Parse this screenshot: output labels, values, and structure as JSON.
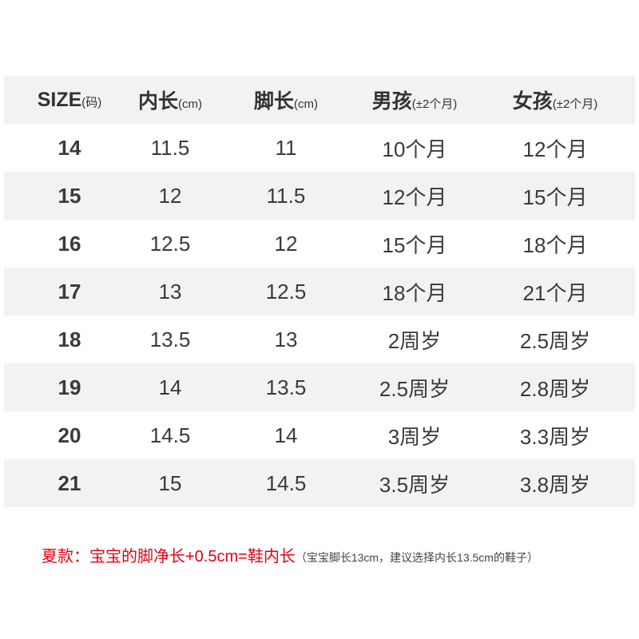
{
  "table": {
    "headers": [
      {
        "main": "SIZE",
        "sub": "(码)"
      },
      {
        "main": "内长",
        "sub": "(cm)"
      },
      {
        "main": "脚长",
        "sub": "(cm)"
      },
      {
        "main": "男孩",
        "sub": "(±2个月)"
      },
      {
        "main": "女孩",
        "sub": "(±2个月)"
      }
    ],
    "rows": [
      [
        "14",
        "11.5",
        "11",
        "10个月",
        "12个月"
      ],
      [
        "15",
        "12",
        "11.5",
        "12个月",
        "15个月"
      ],
      [
        "16",
        "12.5",
        "12",
        "15个月",
        "18个月"
      ],
      [
        "17",
        "13",
        "12.5",
        "18个月",
        "21个月"
      ],
      [
        "18",
        "13.5",
        "13",
        "2周岁",
        "2.5周岁"
      ],
      [
        "19",
        "14",
        "13.5",
        "2.5周岁",
        "2.8周岁"
      ],
      [
        "20",
        "14.5",
        "14",
        "3周岁",
        "3.3周岁"
      ],
      [
        "21",
        "15",
        "14.5",
        "3.5周岁",
        "3.8周岁"
      ]
    ]
  },
  "note": {
    "main": "夏款：宝宝的脚净长+0.5cm=鞋内长",
    "detail": "（宝宝脚长13cm，建议选择内长13.5cm的鞋子）"
  },
  "colors": {
    "row_stripe": "#f2f2f2",
    "note_red": "#e60012",
    "text": "#333333"
  }
}
